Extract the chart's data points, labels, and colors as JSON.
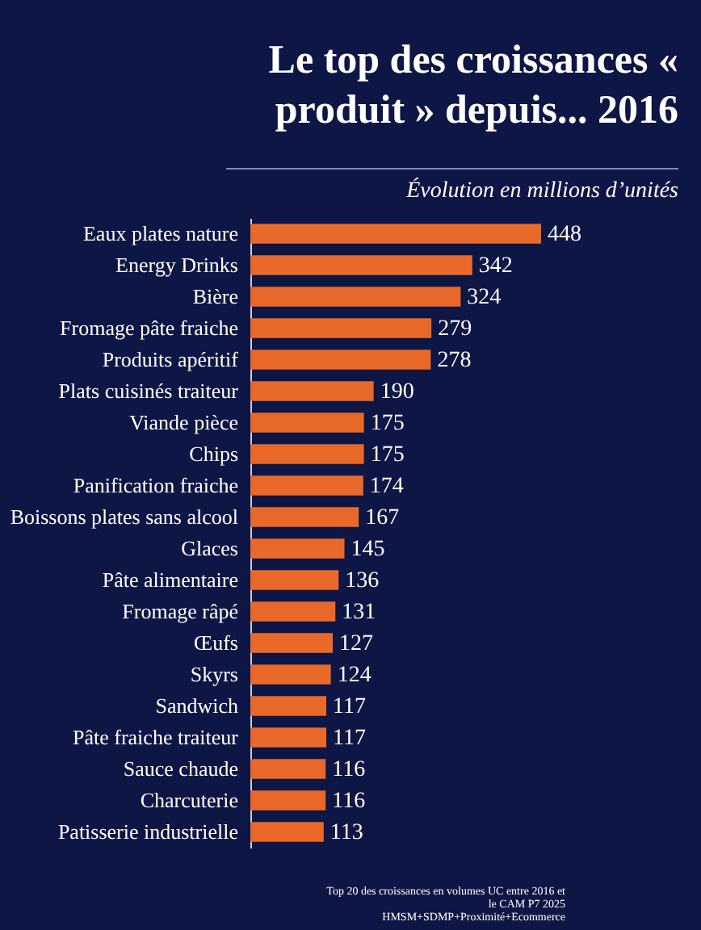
{
  "chart_data": {
    "type": "bar",
    "orientation": "horizontal",
    "title": "Le top des croissances « produit » depuis... 2016",
    "subtitle": "Évolution en millions d’unités",
    "categories": [
      "Eaux plates nature",
      "Energy Drinks",
      "Bière",
      "Fromage pâte fraiche",
      "Produits apéritif",
      "Plats cuisinés traiteur",
      "Viande pièce",
      "Chips",
      "Panification fraiche",
      "Boissons plates sans alcool",
      "Glaces",
      "Pâte alimentaire",
      "Fromage râpé",
      "Œufs",
      "Skyrs",
      "Sandwich",
      "Pâte fraiche traiteur",
      "Sauce chaude",
      "Charcuterie",
      "Patisserie industrielle"
    ],
    "values": [
      448,
      342,
      324,
      279,
      278,
      190,
      175,
      175,
      174,
      167,
      145,
      136,
      131,
      127,
      124,
      117,
      117,
      116,
      116,
      113
    ],
    "color": "#e8692a",
    "data_labels": true,
    "annotations": [
      "Top 20 des croissances en volumes UC entre 2016 et le CAM P7 2025 HMSM+SDMP+Proximité+Ecommerce"
    ]
  }
}
